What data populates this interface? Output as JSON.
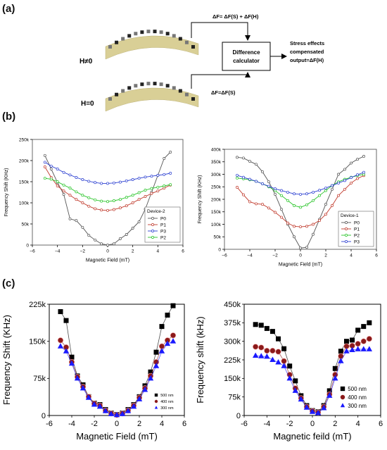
{
  "panels": {
    "a": "(a)",
    "b": "(b)",
    "c": "(c)"
  },
  "schematic": {
    "label_top": "H≠0",
    "label_bottom": "H=0",
    "formula_top": "ΔF= ΔF(S) + ΔF(H)",
    "formula_bottom": "ΔF=ΔF(S)",
    "box_line1": "Difference",
    "box_line2": "calculator",
    "output_line1": "Stress effects",
    "output_line2": "compensated",
    "output_line3": "output=ΔF(H)"
  },
  "chart_data": [
    {
      "id": "b1",
      "type": "line",
      "xlabel": "Magnetic Field (mT)",
      "ylabel": "Frequency Shift (KHz)",
      "xlim": [
        -6,
        6
      ],
      "ylim": [
        0,
        250000
      ],
      "xticks": [
        -6,
        -4,
        -2,
        0,
        2,
        4,
        6
      ],
      "xtick_labels": [
        "−6",
        "−4",
        "−2",
        "0",
        "2",
        "4",
        "6"
      ],
      "yticks": [
        0,
        50000,
        100000,
        150000,
        200000,
        250000
      ],
      "ytick_labels": [
        "0",
        "50k",
        "100k",
        "150k",
        "200k",
        "250k"
      ],
      "legend_title": "Device-2",
      "legend_position": "bottom-right",
      "marker": "open-circle",
      "series": [
        {
          "name": "P0",
          "color": "#555555",
          "x": [
            -5,
            -4.5,
            -4,
            -3.5,
            -3,
            -2.5,
            -2,
            -1.5,
            -1,
            -0.5,
            0,
            0.5,
            1,
            1.5,
            2,
            2.5,
            3,
            3.5,
            4,
            4.5,
            5
          ],
          "y": [
            212000,
            180000,
            148000,
            120000,
            62000,
            58000,
            42000,
            23000,
            12000,
            3000,
            0,
            3000,
            15000,
            25000,
            40000,
            55000,
            85000,
            125000,
            165000,
            205000,
            220000
          ]
        },
        {
          "name": "P1",
          "color": "#c0392b",
          "x": [
            -5,
            -4.5,
            -4,
            -3.5,
            -3,
            -2.5,
            -2,
            -1.5,
            -1,
            -0.5,
            0,
            0.5,
            1,
            1.5,
            2,
            2.5,
            3,
            3.5,
            4,
            4.5,
            5
          ],
          "y": [
            185000,
            160000,
            140000,
            128000,
            118000,
            108000,
            100000,
            92000,
            86000,
            83000,
            82000,
            84000,
            88000,
            93000,
            100000,
            108000,
            115000,
            122000,
            128000,
            135000,
            142000
          ]
        },
        {
          "name": "P3",
          "color": "#2b3fd1",
          "x": [
            -5,
            -4.5,
            -4,
            -3.5,
            -3,
            -2.5,
            -2,
            -1.5,
            -1,
            -0.5,
            0,
            0.5,
            1,
            1.5,
            2,
            2.5,
            3,
            3.5,
            4,
            4.5,
            5
          ],
          "y": [
            196000,
            187000,
            180000,
            172000,
            166000,
            160000,
            155000,
            151000,
            148000,
            146000,
            146000,
            147000,
            149000,
            152000,
            155000,
            158000,
            161000,
            163000,
            165000,
            167000,
            170000
          ]
        },
        {
          "name": "P2",
          "color": "#27c427",
          "x": [
            -5,
            -4.5,
            -4,
            -3.5,
            -3,
            -2.5,
            -2,
            -1.5,
            -1,
            -0.5,
            0,
            0.5,
            1,
            1.5,
            2,
            2.5,
            3,
            3.5,
            4,
            4.5,
            5
          ],
          "y": [
            158000,
            156000,
            150000,
            142000,
            135000,
            126000,
            118000,
            112000,
            107000,
            104000,
            103000,
            105000,
            108000,
            113000,
            118000,
            124000,
            130000,
            134000,
            137000,
            140000,
            143000
          ]
        }
      ]
    },
    {
      "id": "b2",
      "type": "line",
      "xlabel": "Magnetic Field (mT)",
      "ylabel": "Frequency Shift (KHz)",
      "xlim": [
        -6,
        6
      ],
      "ylim": [
        0,
        400000
      ],
      "xticks": [
        -6,
        -4,
        -2,
        0,
        2,
        4,
        6
      ],
      "xtick_labels": [
        "−6",
        "−4",
        "−2",
        "0",
        "2",
        "4",
        "6"
      ],
      "yticks": [
        0,
        50000,
        100000,
        150000,
        200000,
        250000,
        300000,
        350000,
        400000
      ],
      "ytick_labels": [
        "0",
        "50k",
        "100k",
        "150k",
        "200k",
        "250k",
        "300k",
        "350k",
        "400k"
      ],
      "legend_title": "Device-1",
      "legend_position": "bottom-right",
      "marker": "open-circle",
      "series": [
        {
          "name": "P0",
          "color": "#555555",
          "x": [
            -5,
            -4.5,
            -4,
            -3.5,
            -3,
            -2.5,
            -2,
            -1.5,
            -1,
            -0.5,
            0,
            0.5,
            1,
            1.5,
            2,
            2.5,
            3,
            3.5,
            4,
            4.5,
            5
          ],
          "y": [
            368000,
            365000,
            352000,
            340000,
            310000,
            270000,
            220000,
            160000,
            100000,
            50000,
            5000,
            8000,
            60000,
            120000,
            180000,
            240000,
            300000,
            320000,
            345000,
            360000,
            372000
          ]
        },
        {
          "name": "P1",
          "color": "#c0392b",
          "x": [
            -5,
            -4.5,
            -4,
            -3.5,
            -3,
            -2.5,
            -2,
            -1.5,
            -1,
            -0.5,
            0,
            0.5,
            1,
            1.5,
            2,
            2.5,
            3,
            3.5,
            4,
            4.5,
            5
          ],
          "y": [
            248000,
            218000,
            190000,
            182000,
            180000,
            165000,
            148000,
            128000,
            105000,
            92000,
            90000,
            92000,
            100000,
            115000,
            140000,
            175000,
            215000,
            240000,
            265000,
            283000,
            295000
          ]
        },
        {
          "name": "P2",
          "color": "#27c427",
          "x": [
            -5,
            -4.5,
            -4,
            -3.5,
            -3,
            -2.5,
            -2,
            -1.5,
            -1,
            -0.5,
            0,
            0.5,
            1,
            1.5,
            2,
            2.5,
            3,
            3.5,
            4,
            4.5,
            5
          ],
          "y": [
            285000,
            282000,
            278000,
            272000,
            262000,
            250000,
            235000,
            215000,
            195000,
            175000,
            168000,
            178000,
            195000,
            215000,
            235000,
            255000,
            270000,
            280000,
            288000,
            295000,
            300000
          ]
        },
        {
          "name": "P3",
          "color": "#2b3fd1",
          "x": [
            -5,
            -4.5,
            -4,
            -3.5,
            -3,
            -2.5,
            -2,
            -1.5,
            -1,
            -0.5,
            0,
            0.5,
            1,
            1.5,
            2,
            2.5,
            3,
            3.5,
            4,
            4.5,
            5
          ],
          "y": [
            296000,
            288000,
            280000,
            272000,
            262000,
            252000,
            242000,
            235000,
            228000,
            222000,
            220000,
            222000,
            228000,
            236000,
            245000,
            255000,
            265000,
            275000,
            287000,
            298000,
            308000
          ]
        }
      ]
    },
    {
      "id": "c1",
      "type": "scatter",
      "xlabel": "Magnetic Field (mT)",
      "ylabel": "Frequency Shift (KHz)",
      "xlim": [
        -6,
        6
      ],
      "ylim": [
        0,
        225000
      ],
      "xticks": [
        -6,
        -4,
        -2,
        0,
        2,
        4,
        6
      ],
      "xtick_labels": [
        "-6",
        "-4",
        "-2",
        "0",
        "2",
        "4",
        "6"
      ],
      "yticks": [
        0,
        75000,
        150000,
        225000
      ],
      "ytick_labels": [
        "0",
        "75k",
        "150k",
        "225k"
      ],
      "legend_position": "bottom-right",
      "series": [
        {
          "name": "500 nm",
          "color": "#000000",
          "marker": "square",
          "x": [
            -5,
            -4.5,
            -4,
            -3.5,
            -3,
            -2.5,
            -2,
            -1.5,
            -1,
            -0.5,
            0,
            0.5,
            1,
            1.5,
            2,
            2.5,
            3,
            3.5,
            4,
            4.5,
            5
          ],
          "y": [
            210000,
            192000,
            118000,
            80000,
            62000,
            38000,
            25000,
            22000,
            12000,
            5000,
            2000,
            5000,
            12000,
            22000,
            38000,
            60000,
            88000,
            128000,
            180000,
            203000,
            222000
          ]
        },
        {
          "name": "400 nm",
          "color": "#8b1a1a",
          "marker": "circle",
          "x": [
            -5,
            -4.5,
            -4,
            -3.5,
            -3,
            -2.5,
            -2,
            -1.5,
            -1,
            -0.5,
            0,
            0.5,
            1,
            1.5,
            2,
            2.5,
            3,
            3.5,
            4,
            4.5,
            5
          ],
          "y": [
            152000,
            138000,
            108000,
            78000,
            58000,
            38000,
            24000,
            20000,
            10000,
            4000,
            1000,
            4000,
            10000,
            20000,
            36000,
            55000,
            80000,
            108000,
            140000,
            152000,
            162000
          ]
        },
        {
          "name": "300 nm",
          "color": "#1a1aff",
          "marker": "triangle",
          "x": [
            -5,
            -4.5,
            -4,
            -3.5,
            -3,
            -2.5,
            -2,
            -1.5,
            -1,
            -0.5,
            0,
            0.5,
            1,
            1.5,
            2,
            2.5,
            3,
            3.5,
            4,
            4.5,
            5
          ],
          "y": [
            140000,
            130000,
            105000,
            75000,
            55000,
            36000,
            22000,
            18000,
            9000,
            3000,
            1000,
            3000,
            9000,
            18000,
            33000,
            52000,
            75000,
            100000,
            130000,
            145000,
            150000
          ]
        }
      ]
    },
    {
      "id": "c2",
      "type": "scatter",
      "xlabel": "Magnetic feild (mT)",
      "ylabel": "Frequency shift (kHz)",
      "xlim": [
        -6,
        6
      ],
      "ylim": [
        0,
        450000
      ],
      "xticks": [
        -6,
        -4,
        -2,
        0,
        2,
        4,
        6
      ],
      "xtick_labels": [
        "-6",
        "-4",
        "-2",
        "0",
        "2",
        "4",
        "6"
      ],
      "yticks": [
        0,
        75000,
        150000,
        225000,
        300000,
        375000,
        450000
      ],
      "ytick_labels": [
        "0",
        "75k",
        "150k",
        "225k",
        "300k",
        "375k",
        "450k"
      ],
      "legend_position": "bottom-right",
      "series": [
        {
          "name": "500 nm",
          "color": "#000000",
          "marker": "square",
          "x": [
            -5,
            -4.5,
            -4,
            -3.5,
            -3,
            -2.5,
            -2,
            -1.5,
            -1,
            -0.5,
            0,
            0.5,
            1,
            1.5,
            2,
            2.5,
            3,
            3.5,
            4,
            4.5,
            5
          ],
          "y": [
            368000,
            365000,
            352000,
            340000,
            310000,
            270000,
            200000,
            140000,
            80000,
            40000,
            20000,
            15000,
            40000,
            100000,
            190000,
            260000,
            300000,
            305000,
            345000,
            360000,
            375000
          ]
        },
        {
          "name": "400 nm",
          "color": "#8b1a1a",
          "marker": "circle",
          "x": [
            -5,
            -4.5,
            -4,
            -3.5,
            -3,
            -2.5,
            -2,
            -1.5,
            -1,
            -0.5,
            0,
            0.5,
            1,
            1.5,
            2,
            2.5,
            3,
            3.5,
            4,
            4.5,
            5
          ],
          "y": [
            278000,
            275000,
            262000,
            262000,
            258000,
            220000,
            165000,
            110000,
            70000,
            35000,
            18000,
            12000,
            35000,
            85000,
            165000,
            240000,
            280000,
            282000,
            290000,
            300000,
            310000
          ]
        },
        {
          "name": "300 nm",
          "color": "#1a1aff",
          "marker": "triangle",
          "x": [
            -5,
            -4.5,
            -4,
            -3.5,
            -3,
            -2.5,
            -2,
            -1.5,
            -1,
            -0.5,
            0,
            0.5,
            1,
            1.5,
            2,
            2.5,
            3,
            3.5,
            4,
            4.5,
            5
          ],
          "y": [
            242000,
            240000,
            238000,
            225000,
            215000,
            200000,
            150000,
            100000,
            65000,
            32000,
            15000,
            10000,
            30000,
            80000,
            150000,
            220000,
            260000,
            265000,
            268000,
            268000,
            268000
          ]
        }
      ]
    }
  ]
}
